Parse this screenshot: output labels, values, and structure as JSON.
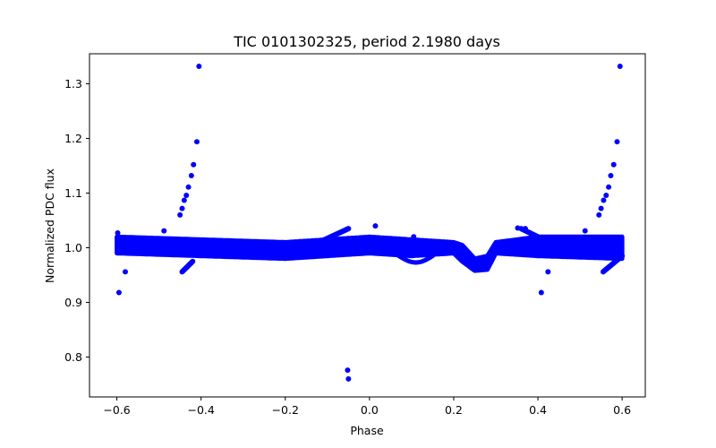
{
  "chart_data": {
    "type": "scatter",
    "title": "TIC 0101302325, period 2.1980 days",
    "xlabel": "Phase",
    "ylabel": "Normalized PDC flux",
    "xlim": [
      -0.665,
      0.655
    ],
    "ylim": [
      0.727,
      1.355
    ],
    "xticks": [
      -0.6,
      -0.4,
      -0.2,
      0.0,
      0.2,
      0.4,
      0.6
    ],
    "xtick_labels": [
      "−0.6",
      "−0.4",
      "−0.2",
      "0.0",
      "0.2",
      "0.4",
      "0.6"
    ],
    "yticks": [
      0.8,
      0.9,
      1.0,
      1.1,
      1.2,
      1.3
    ],
    "ytick_labels": [
      "0.8",
      "0.9",
      "1.0",
      "1.1",
      "1.2",
      "1.3"
    ],
    "grid": false,
    "legend": null,
    "marker_color": "#0000ff",
    "series": [
      {
        "name": "phase-folded light curve",
        "description": "Dense band near flux 1.0 spanning phase -0.6 to 0.6, with a shallow dip near phase 0.25 (min ~0.96), a faint secondary lobe near phase 0.1, plus outlier ramps",
        "band": {
          "x_range": [
            -0.6,
            0.6
          ],
          "upper": [
            [
              -0.6,
              1.02
            ],
            [
              -0.4,
              1.015
            ],
            [
              -0.2,
              1.01
            ],
            [
              0.0,
              1.02
            ],
            [
              0.2,
              1.01
            ],
            [
              0.22,
              1.005
            ],
            [
              0.25,
              0.98
            ],
            [
              0.28,
              0.985
            ],
            [
              0.3,
              1.01
            ],
            [
              0.4,
              1.02
            ],
            [
              0.6,
              1.02
            ]
          ],
          "lower": [
            [
              -0.6,
              0.99
            ],
            [
              -0.4,
              0.985
            ],
            [
              -0.2,
              0.98
            ],
            [
              0.0,
              0.99
            ],
            [
              0.1,
              0.985
            ],
            [
              0.2,
              0.99
            ],
            [
              0.22,
              0.975
            ],
            [
              0.25,
              0.958
            ],
            [
              0.28,
              0.96
            ],
            [
              0.3,
              0.99
            ],
            [
              0.4,
              0.985
            ],
            [
              0.6,
              0.98
            ]
          ]
        },
        "outliers": [
          {
            "x": -0.405,
            "y": 1.332
          },
          {
            "x": -0.41,
            "y": 1.194
          },
          {
            "x": -0.418,
            "y": 1.152
          },
          {
            "x": -0.423,
            "y": 1.132
          },
          {
            "x": -0.43,
            "y": 1.111
          },
          {
            "x": -0.435,
            "y": 1.096
          },
          {
            "x": -0.44,
            "y": 1.087
          },
          {
            "x": -0.445,
            "y": 1.072
          },
          {
            "x": -0.45,
            "y": 1.06
          },
          {
            "x": -0.488,
            "y": 1.031
          },
          {
            "x": 0.595,
            "y": 1.332
          },
          {
            "x": 0.588,
            "y": 1.194
          },
          {
            "x": 0.58,
            "y": 1.152
          },
          {
            "x": 0.573,
            "y": 1.132
          },
          {
            "x": 0.568,
            "y": 1.111
          },
          {
            "x": 0.562,
            "y": 1.096
          },
          {
            "x": 0.556,
            "y": 1.087
          },
          {
            "x": 0.55,
            "y": 1.072
          },
          {
            "x": 0.545,
            "y": 1.06
          },
          {
            "x": 0.512,
            "y": 1.031
          },
          {
            "x": -0.595,
            "y": 0.918
          },
          {
            "x": -0.58,
            "y": 0.956
          },
          {
            "x": 0.408,
            "y": 0.918
          },
          {
            "x": 0.424,
            "y": 0.956
          },
          {
            "x": -0.052,
            "y": 0.776
          },
          {
            "x": -0.05,
            "y": 0.76
          },
          {
            "x": -0.598,
            "y": 1.027
          },
          {
            "x": 0.014,
            "y": 1.04
          },
          {
            "x": 0.105,
            "y": 1.02
          },
          {
            "x": 0.352,
            "y": 1.036
          },
          {
            "x": 0.37,
            "y": 1.035
          }
        ],
        "ramps": [
          {
            "from": {
              "x": -0.445,
              "y": 0.956
            },
            "to": {
              "x": -0.42,
              "y": 0.975
            }
          },
          {
            "from": {
              "x": 0.555,
              "y": 0.956
            },
            "to": {
              "x": 0.6,
              "y": 0.985
            }
          },
          {
            "from": {
              "x": -0.12,
              "y": 1.01
            },
            "to": {
              "x": -0.05,
              "y": 1.035
            }
          },
          {
            "from": {
              "x": 0.36,
              "y": 1.035
            },
            "to": {
              "x": 0.4,
              "y": 1.02
            }
          }
        ]
      }
    ]
  }
}
